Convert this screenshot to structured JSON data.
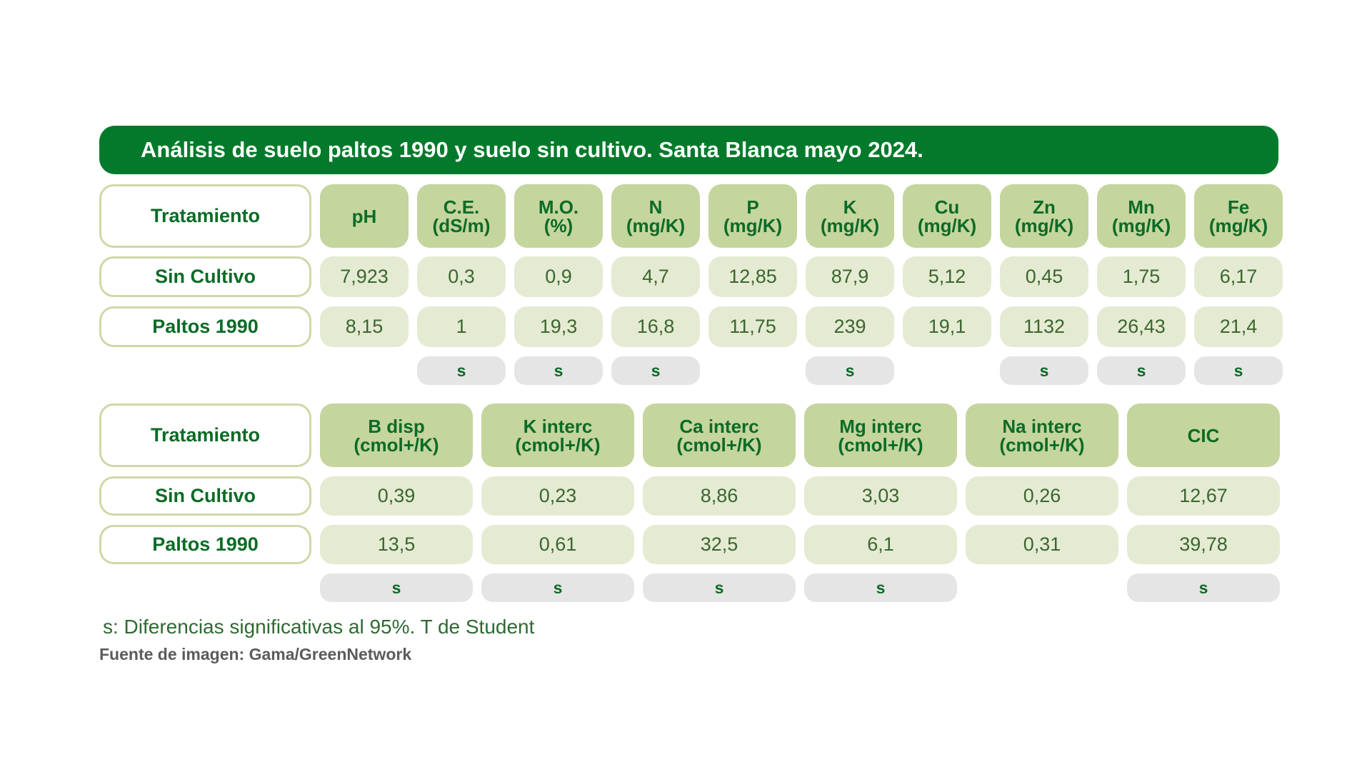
{
  "title": "Análisis de suelo paltos 1990 y suelo sin cultivo. Santa Blanca mayo 2024.",
  "table1": {
    "corner": "Tratamiento",
    "headers": [
      [
        "pH",
        ""
      ],
      [
        "C.E.",
        "(dS/m)"
      ],
      [
        "M.O.",
        "(%)"
      ],
      [
        "N",
        "(mg/K)"
      ],
      [
        "P",
        "(mg/K)"
      ],
      [
        "K",
        "(mg/K)"
      ],
      [
        "Cu",
        "(mg/K)"
      ],
      [
        "Zn",
        "(mg/K)"
      ],
      [
        "Mn",
        "(mg/K)"
      ],
      [
        "Fe",
        "(mg/K)"
      ]
    ],
    "rows": [
      {
        "label": "Sin Cultivo",
        "values": [
          "7,923",
          "0,3",
          "0,9",
          "4,7",
          "12,85",
          "87,9",
          "5,12",
          "0,45",
          "1,75",
          "6,17"
        ]
      },
      {
        "label": "Paltos 1990",
        "values": [
          "8,15",
          "1",
          "19,3",
          "16,8",
          "11,75",
          "239",
          "19,1",
          "1132",
          "26,43",
          "21,4"
        ]
      }
    ],
    "significance": [
      "",
      "s",
      "s",
      "s",
      "",
      "s",
      "",
      "s",
      "s",
      "s"
    ]
  },
  "table2": {
    "corner": "Tratamiento",
    "headers": [
      [
        "B disp",
        "(cmol+/K)"
      ],
      [
        "K interc",
        "(cmol+/K)"
      ],
      [
        "Ca interc",
        "(cmol+/K)"
      ],
      [
        "Mg interc",
        "(cmol+/K)"
      ],
      [
        "Na interc",
        "(cmol+/K)"
      ],
      [
        "CIC",
        ""
      ]
    ],
    "rows": [
      {
        "label": "Sin Cultivo",
        "values": [
          "0,39",
          "0,23",
          "8,86",
          "3,03",
          "0,26",
          "12,67"
        ]
      },
      {
        "label": "Paltos 1990",
        "values": [
          "13,5",
          "0,61",
          "32,5",
          "6,1",
          "0,31",
          "39,78"
        ]
      }
    ],
    "significance": [
      "s",
      "s",
      "s",
      "s",
      "",
      "s"
    ]
  },
  "note": "s: Diferencias significativas al 95%. T de Student",
  "source": "Fuente de imagen: Gama/GreenNetwork",
  "colors": {
    "title_bg": "#037a2b",
    "header_bg": "#c5d59e",
    "value_bg": "#e5ebd2",
    "sig_bg": "#e5e5e5",
    "text_green": "#0b6b26",
    "label_border": "#cfd8a8"
  }
}
